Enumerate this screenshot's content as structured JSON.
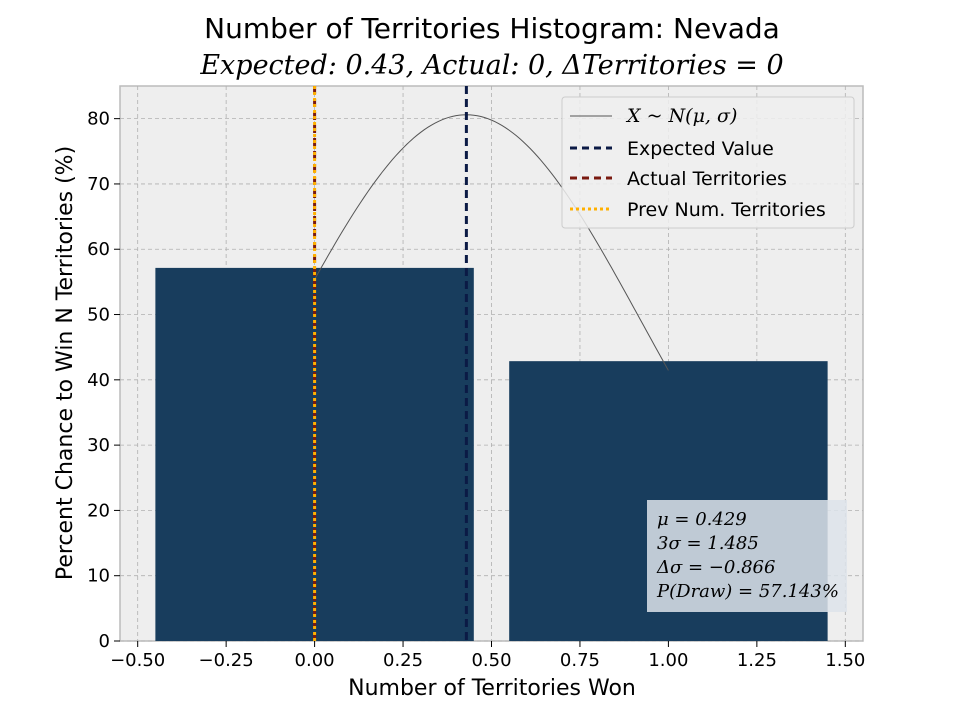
{
  "chart_data": {
    "type": "bar",
    "title": "Number of Territories Histogram: Nevada",
    "subtitle": "Expected: 0.43, Actual: 0, ΔTerritories = 0",
    "xlabel": "Number of Territories Won",
    "ylabel": "Percent Chance to Win N Territories (%)",
    "xlim": [
      -0.55,
      1.55
    ],
    "ylim": [
      0,
      85
    ],
    "xticks": [
      -0.5,
      -0.25,
      0.0,
      0.25,
      0.5,
      0.75,
      1.0,
      1.25,
      1.5
    ],
    "xtick_labels": [
      "−0.50",
      "−0.25",
      "0.00",
      "0.25",
      "0.50",
      "0.75",
      "1.00",
      "1.25",
      "1.50"
    ],
    "yticks": [
      0,
      10,
      20,
      30,
      40,
      50,
      60,
      70,
      80
    ],
    "yticklabels": [
      "0",
      "10",
      "20",
      "30",
      "40",
      "50",
      "60",
      "70",
      "80"
    ],
    "grid": true,
    "bars": [
      {
        "x": 0,
        "value": 57.143,
        "width": 0.9
      },
      {
        "x": 1,
        "value": 42.857,
        "width": 0.9
      }
    ],
    "normal_curve": {
      "mu": 0.429,
      "sigma": 0.495,
      "peak": 80.6,
      "x_range": [
        0,
        1
      ]
    },
    "vlines": {
      "expected": 0.429,
      "actual": 0,
      "previous": 0
    },
    "legend": {
      "position": "top-right",
      "entries": [
        {
          "label": "X ~ N(μ, σ)",
          "style": "thin-solid"
        },
        {
          "label": "Expected Value",
          "style": "dashed-navy"
        },
        {
          "label": "Actual Territories",
          "style": "dashed-maroon"
        },
        {
          "label": "Prev Num. Territories",
          "style": "dotted-orange"
        }
      ]
    },
    "stats_box": {
      "position": "bottom-right",
      "lines": [
        "μ = 0.429",
        "3σ = 1.485",
        "Δσ = −0.866",
        "P(Draw) = 57.143%"
      ]
    },
    "colors": {
      "bar": "#183d5d",
      "expected": "#0b1a45",
      "actual": "#7a1a10",
      "previous": "#ffb000",
      "curve": "#555555",
      "plot_bg": "#eeeeee",
      "grid": "#b0b0b0"
    }
  }
}
